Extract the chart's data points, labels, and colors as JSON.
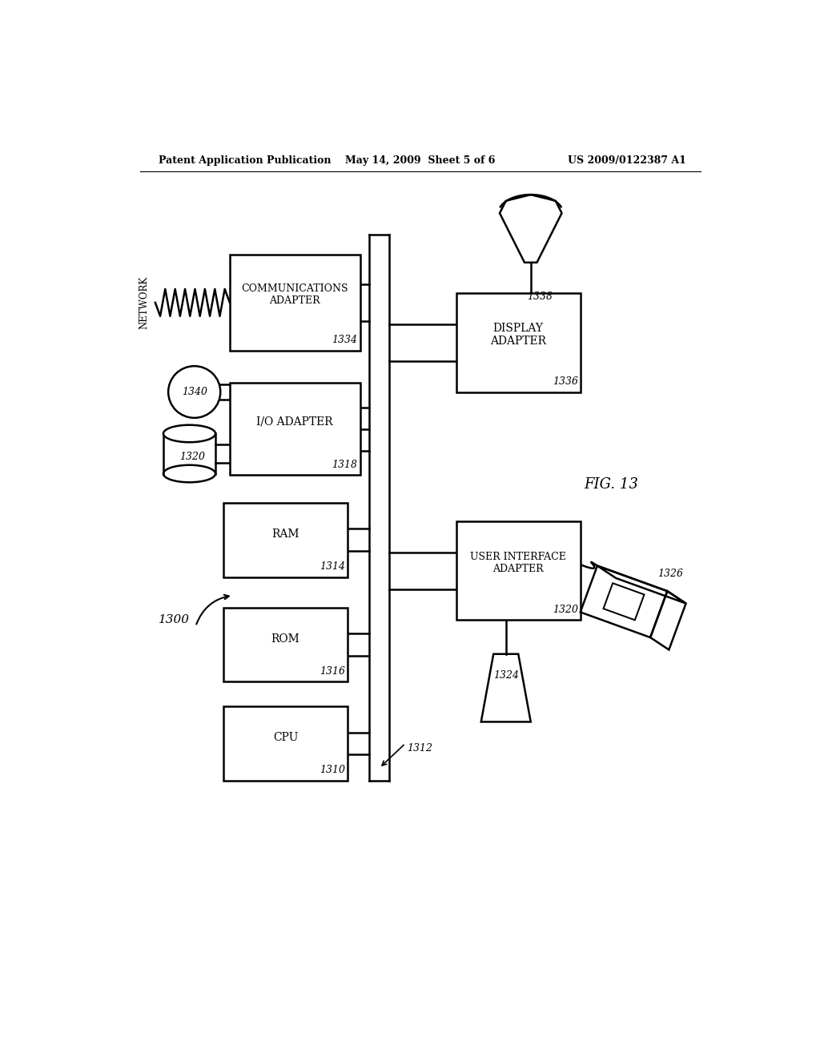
{
  "background_color": "#ffffff",
  "header_left": "Patent Application Publication",
  "header_center": "May 14, 2009  Sheet 5 of 6",
  "header_right": "US 2009/0122387 A1",
  "fig_label": "FIG. 13",
  "system_label": "1300",
  "text_color": "#000000",
  "line_color": "#000000",
  "font_family": "DejaVu Serif"
}
